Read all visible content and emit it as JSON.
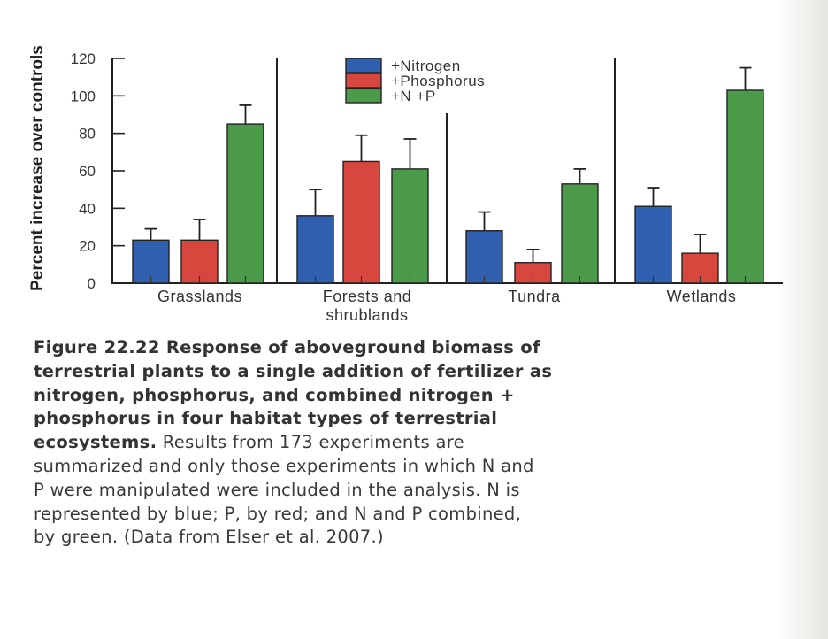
{
  "chart_data": {
    "type": "bar",
    "title": "",
    "xlabel": "",
    "ylabel": "Percent increase over controls",
    "ylim": [
      0,
      120
    ],
    "yticks": [
      0,
      20,
      40,
      60,
      80,
      100,
      120
    ],
    "grid": false,
    "legend_position": "top-center",
    "categories": [
      "Grasslands",
      "Forests and shrublands",
      "Tundra",
      "Wetlands"
    ],
    "category_label_lines": [
      [
        "Grasslands"
      ],
      [
        "Forests and",
        "shrublands"
      ],
      [
        "Tundra"
      ],
      [
        "Wetlands"
      ]
    ],
    "series": [
      {
        "name": "+Nitrogen",
        "color": "#2f5fae",
        "values": [
          23,
          36,
          28,
          41
        ],
        "error_upper": [
          29,
          50,
          38,
          51
        ]
      },
      {
        "name": "+Phosphorus",
        "color": "#d8473e",
        "values": [
          23,
          65,
          11,
          16
        ],
        "error_upper": [
          34,
          79,
          18,
          26
        ]
      },
      {
        "name": "+N +P",
        "color": "#4a9a4a",
        "values": [
          85,
          61,
          53,
          103
        ],
        "error_upper": [
          95,
          77,
          61,
          115
        ]
      }
    ]
  },
  "caption": {
    "figure_label": "Figure 22.22",
    "bold_lines": [
      " Response of aboveground biomass of",
      "terrestrial plants to a single addition of fertilizer as",
      "nitrogen, phosphorus, and combined nitrogen +",
      "phosphorus in four habitat types of terrestrial"
    ],
    "bold_end": "ecosystems.",
    "normal_first": " Results from 173 experiments are",
    "normal_lines": [
      "summarized and only those experiments in which N and",
      "P were manipulated were included in the analysis. N is",
      "represented by blue; P, by red; and N and P combined,",
      "by green. (Data from Elser et al. 2007.)"
    ]
  }
}
